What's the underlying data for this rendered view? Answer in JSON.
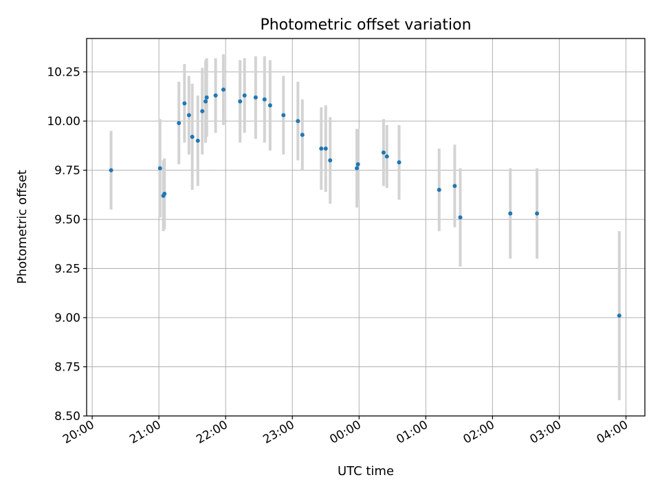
{
  "chart_data": {
    "type": "scatter",
    "title": "Photometric offset variation",
    "xlabel": "UTC time",
    "ylabel": "Photometric offset",
    "x_tick_labels": [
      "20:00",
      "21:00",
      "22:00",
      "23:00",
      "00:00",
      "01:00",
      "02:00",
      "03:00",
      "04:00"
    ],
    "y_tick_labels": [
      "8.50",
      "8.75",
      "9.00",
      "9.25",
      "9.50",
      "9.75",
      "10.00",
      "10.25"
    ],
    "xlim": [
      "19:55",
      "04:17"
    ],
    "ylim": [
      8.5,
      10.42
    ],
    "grid": true,
    "legend": "none",
    "colors": {
      "marker": "#1f77b4",
      "errorbar": "#d3d3d3",
      "grid": "#b0b0b0"
    },
    "points": [
      {
        "x": "20:17",
        "y": 9.75,
        "err": 0.2
      },
      {
        "x": "21:01",
        "y": 9.76,
        "err": 0.25
      },
      {
        "x": "21:04",
        "y": 9.62,
        "err": 0.18
      },
      {
        "x": "21:05",
        "y": 9.63,
        "err": 0.18
      },
      {
        "x": "21:18",
        "y": 9.99,
        "err": 0.21
      },
      {
        "x": "21:23",
        "y": 10.09,
        "err": 0.2
      },
      {
        "x": "21:27",
        "y": 10.03,
        "err": 0.2
      },
      {
        "x": "21:30",
        "y": 9.92,
        "err": 0.27
      },
      {
        "x": "21:35",
        "y": 9.9,
        "err": 0.23
      },
      {
        "x": "21:39",
        "y": 10.05,
        "err": 0.22
      },
      {
        "x": "21:42",
        "y": 10.1,
        "err": 0.21
      },
      {
        "x": "21:43",
        "y": 10.12,
        "err": 0.2
      },
      {
        "x": "21:51",
        "y": 10.13,
        "err": 0.19
      },
      {
        "x": "21:58",
        "y": 10.16,
        "err": 0.18
      },
      {
        "x": "22:13",
        "y": 10.1,
        "err": 0.21
      },
      {
        "x": "22:17",
        "y": 10.13,
        "err": 0.19
      },
      {
        "x": "22:27",
        "y": 10.12,
        "err": 0.21
      },
      {
        "x": "22:35",
        "y": 10.11,
        "err": 0.22
      },
      {
        "x": "22:40",
        "y": 10.08,
        "err": 0.23
      },
      {
        "x": "22:52",
        "y": 10.03,
        "err": 0.2
      },
      {
        "x": "23:05",
        "y": 10.0,
        "err": 0.2
      },
      {
        "x": "23:09",
        "y": 9.93,
        "err": 0.18
      },
      {
        "x": "23:26",
        "y": 9.86,
        "err": 0.21
      },
      {
        "x": "23:30",
        "y": 9.86,
        "err": 0.22
      },
      {
        "x": "23:34",
        "y": 9.8,
        "err": 0.22
      },
      {
        "x": "23:58",
        "y": 9.76,
        "err": 0.2
      },
      {
        "x": "23:59",
        "y": 9.78,
        "err": 0.18
      },
      {
        "x": "00:22",
        "y": 9.84,
        "err": 0.17
      },
      {
        "x": "00:25",
        "y": 9.82,
        "err": 0.16
      },
      {
        "x": "00:36",
        "y": 9.79,
        "err": 0.19
      },
      {
        "x": "01:12",
        "y": 9.65,
        "err": 0.21
      },
      {
        "x": "01:26",
        "y": 9.67,
        "err": 0.21
      },
      {
        "x": "01:31",
        "y": 9.51,
        "err": 0.25
      },
      {
        "x": "02:16",
        "y": 9.53,
        "err": 0.23
      },
      {
        "x": "02:40",
        "y": 9.53,
        "err": 0.23
      },
      {
        "x": "03:54",
        "y": 9.01,
        "err": 0.43
      }
    ]
  }
}
